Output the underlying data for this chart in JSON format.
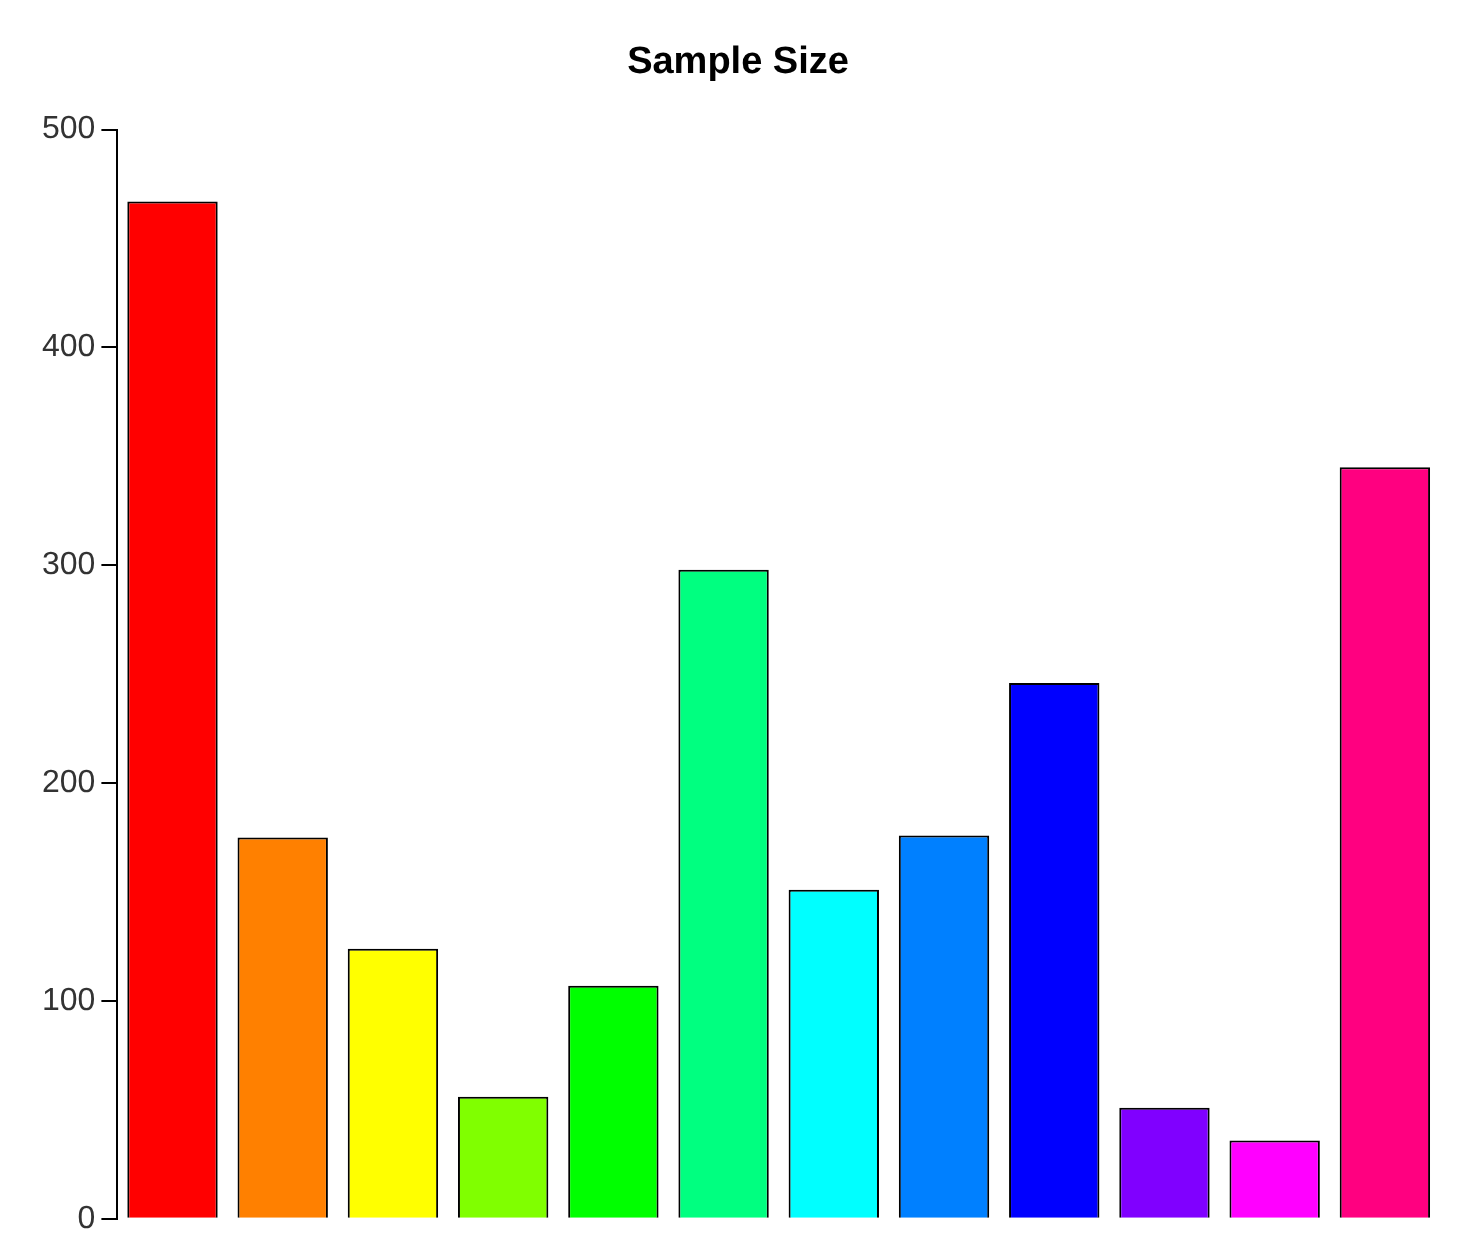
{
  "chart_data": {
    "type": "bar",
    "title": "Sample Size",
    "categories": [
      null,
      null,
      null,
      null,
      null,
      null,
      null,
      null,
      null,
      null,
      null,
      null
    ],
    "values": [
      467,
      175,
      124,
      56,
      107,
      298,
      151,
      176,
      246,
      51,
      36,
      345
    ],
    "colors": [
      "#ff0000",
      "#ff8000",
      "#ffff00",
      "#80ff00",
      "#00ff00",
      "#00ff80",
      "#00ffff",
      "#0080ff",
      "#0000ff",
      "#8000ff",
      "#ff00ff",
      "#ff0080"
    ],
    "ylim": [
      0,
      500
    ],
    "yticks": [
      0,
      100,
      200,
      300,
      400,
      500
    ],
    "grid": false,
    "legend": false
  }
}
